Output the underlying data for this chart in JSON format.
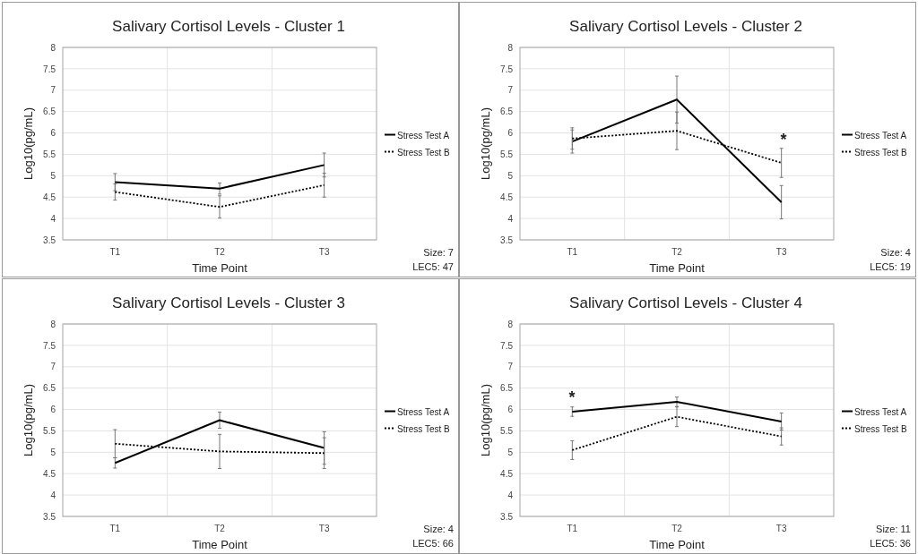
{
  "chart_data": [
    {
      "type": "line",
      "title": "Salivary Cortisol Levels - Cluster 1",
      "xlabel": "Time Point",
      "ylabel": "Log10(pg/mL)",
      "categories": [
        "T1",
        "T2",
        "T3"
      ],
      "ylim": [
        3.5,
        8
      ],
      "yticks": [
        3.5,
        4,
        4.5,
        5,
        5.5,
        6,
        6.5,
        7,
        7.5,
        8
      ],
      "grid": true,
      "legend": "right",
      "marker": "none",
      "series": [
        {
          "name": "Stress Test A",
          "color": "#000000",
          "line_style": "solid",
          "values": [
            4.85,
            4.7,
            5.25
          ],
          "errors": [
            0.2,
            0.13,
            0.28
          ]
        },
        {
          "name": "Stress Test B",
          "color": "#000000",
          "line_style": "dotted",
          "values": [
            4.62,
            4.27,
            4.78
          ],
          "errors": [
            0.19,
            0.26,
            0.28
          ]
        }
      ],
      "annotations": [
        "Size: 7",
        "LEC5: 47"
      ]
    },
    {
      "type": "line",
      "title": "Salivary Cortisol Levels - Cluster 2",
      "xlabel": "Time Point",
      "ylabel": "Log10(pg/mL)",
      "categories": [
        "T1",
        "T2",
        "T3"
      ],
      "ylim": [
        3.5,
        8
      ],
      "yticks": [
        3.5,
        4,
        4.5,
        5,
        5.5,
        6,
        6.5,
        7,
        7.5,
        8
      ],
      "grid": true,
      "legend": "right",
      "marker": "none",
      "series": [
        {
          "name": "Stress Test A",
          "color": "#000000",
          "line_style": "solid",
          "values": [
            5.8,
            6.78,
            4.38
          ],
          "errors": [
            0.27,
            0.55,
            0.39
          ]
        },
        {
          "name": "Stress Test B",
          "color": "#000000",
          "line_style": "dotted",
          "values": [
            5.87,
            6.05,
            5.3
          ],
          "errors": [
            0.25,
            0.44,
            0.34
          ]
        }
      ],
      "annotations": [
        "*",
        "Size: 4",
        "LEC5: 19"
      ]
    },
    {
      "type": "line",
      "title": "Salivary Cortisol Levels - Cluster 3",
      "xlabel": "Time Point",
      "ylabel": "Log10(pg/mL)",
      "categories": [
        "T1",
        "T2",
        "T3"
      ],
      "ylim": [
        3.5,
        8
      ],
      "yticks": [
        3.5,
        4,
        4.5,
        5,
        5.5,
        6,
        6.5,
        7,
        7.5,
        8
      ],
      "grid": true,
      "legend": "right",
      "marker": "none",
      "series": [
        {
          "name": "Stress Test A",
          "color": "#000000",
          "line_style": "solid",
          "values": [
            4.75,
            5.75,
            5.1
          ],
          "errors": [
            0.12,
            0.19,
            0.38
          ]
        },
        {
          "name": "Stress Test B",
          "color": "#000000",
          "line_style": "dotted",
          "values": [
            5.2,
            5.02,
            4.98
          ],
          "errors": [
            0.33,
            0.4,
            0.36
          ]
        }
      ],
      "annotations": [
        "Size: 4",
        "LEC5: 66"
      ]
    },
    {
      "type": "line",
      "title": "Salivary Cortisol Levels - Cluster 4",
      "xlabel": "Time Point",
      "ylabel": "Log10(pg/mL)",
      "categories": [
        "T1",
        "T2",
        "T3"
      ],
      "ylim": [
        3.5,
        8
      ],
      "yticks": [
        3.5,
        4,
        4.5,
        5,
        5.5,
        6,
        6.5,
        7,
        7.5,
        8
      ],
      "grid": true,
      "legend": "right",
      "marker": "none",
      "series": [
        {
          "name": "Stress Test A",
          "color": "#000000",
          "line_style": "solid",
          "values": [
            5.95,
            6.18,
            5.72
          ],
          "errors": [
            0.11,
            0.11,
            0.2
          ]
        },
        {
          "name": "Stress Test B",
          "color": "#000000",
          "line_style": "dotted",
          "values": [
            5.05,
            5.83,
            5.37
          ],
          "errors": [
            0.22,
            0.23,
            0.2
          ]
        }
      ],
      "annotations": [
        "*",
        "Size: 11",
        "LEC5: 36"
      ]
    }
  ]
}
